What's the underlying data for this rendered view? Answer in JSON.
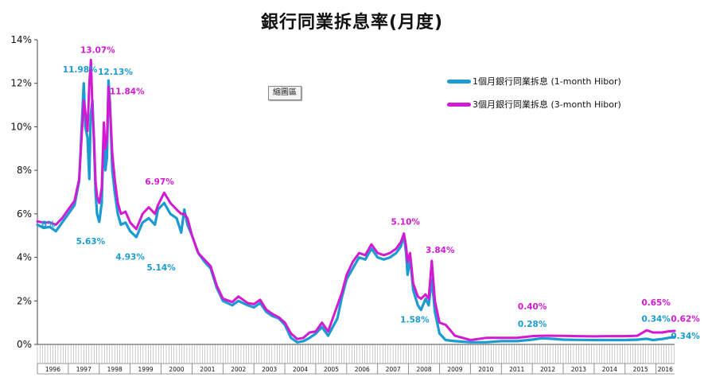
{
  "chart_data": {
    "type": "line",
    "title": "銀行同業拆息率(月度)",
    "xlabel": "",
    "ylabel": "",
    "ylim": [
      0,
      14
    ],
    "y_ticks": [
      "0%",
      "2%",
      "4%",
      "6%",
      "8%",
      "10%",
      "12%",
      "14%"
    ],
    "x_range": [
      1996.0,
      2016.6
    ],
    "year_labels": [
      "1996",
      "1997",
      "1998",
      "1999",
      "2000",
      "2001",
      "2002",
      "2003",
      "2004",
      "2005",
      "2006",
      "2007",
      "2008",
      "2009",
      "2010",
      "2011",
      "2012",
      "2013",
      "2014",
      "2015",
      "2016"
    ],
    "grid": false,
    "legend_position": "top-right",
    "series": [
      {
        "name": "1個月銀行同業拆息 (1-month Hibor)",
        "color": "#1b9bd1",
        "points": [
          [
            1996.0,
            5.5
          ],
          [
            1996.2,
            5.35
          ],
          [
            1996.4,
            5.4
          ],
          [
            1996.6,
            5.2
          ],
          [
            1996.8,
            5.6
          ],
          [
            1997.0,
            6.0
          ],
          [
            1997.2,
            6.4
          ],
          [
            1997.35,
            7.5
          ],
          [
            1997.5,
            12.0
          ],
          [
            1997.55,
            10.0
          ],
          [
            1997.62,
            9.5
          ],
          [
            1997.68,
            7.6
          ],
          [
            1997.72,
            10.5
          ],
          [
            1997.78,
            11.2
          ],
          [
            1997.83,
            9.2
          ],
          [
            1997.88,
            7.0
          ],
          [
            1997.93,
            6.0
          ],
          [
            1998.0,
            5.63
          ],
          [
            1998.08,
            6.5
          ],
          [
            1998.15,
            10.0
          ],
          [
            1998.2,
            8.0
          ],
          [
            1998.25,
            8.6
          ],
          [
            1998.3,
            12.13
          ],
          [
            1998.35,
            11.0
          ],
          [
            1998.42,
            8.0
          ],
          [
            1998.5,
            7.0
          ],
          [
            1998.6,
            6.0
          ],
          [
            1998.7,
            5.5
          ],
          [
            1998.85,
            5.6
          ],
          [
            1999.0,
            5.2
          ],
          [
            1999.2,
            4.93
          ],
          [
            1999.4,
            5.6
          ],
          [
            1999.6,
            5.8
          ],
          [
            1999.8,
            5.5
          ],
          [
            1999.9,
            6.2
          ],
          [
            2000.1,
            6.5
          ],
          [
            2000.3,
            6.0
          ],
          [
            2000.5,
            5.8
          ],
          [
            2000.65,
            5.14
          ],
          [
            2000.75,
            6.2
          ],
          [
            2000.85,
            5.5
          ],
          [
            2001.0,
            5.0
          ],
          [
            2001.2,
            4.2
          ],
          [
            2001.4,
            3.8
          ],
          [
            2001.6,
            3.5
          ],
          [
            2001.8,
            2.6
          ],
          [
            2002.0,
            2.0
          ],
          [
            2002.3,
            1.8
          ],
          [
            2002.5,
            2.0
          ],
          [
            2002.8,
            1.8
          ],
          [
            2003.0,
            1.7
          ],
          [
            2003.2,
            1.9
          ],
          [
            2003.4,
            1.5
          ],
          [
            2003.6,
            1.3
          ],
          [
            2003.8,
            1.2
          ],
          [
            2004.0,
            0.9
          ],
          [
            2004.2,
            0.3
          ],
          [
            2004.4,
            0.1
          ],
          [
            2004.6,
            0.15
          ],
          [
            2004.8,
            0.3
          ],
          [
            2005.0,
            0.5
          ],
          [
            2005.2,
            0.8
          ],
          [
            2005.4,
            0.4
          ],
          [
            2005.55,
            0.8
          ],
          [
            2005.7,
            1.2
          ],
          [
            2005.85,
            2.2
          ],
          [
            2006.0,
            3.0
          ],
          [
            2006.2,
            3.5
          ],
          [
            2006.4,
            4.0
          ],
          [
            2006.6,
            3.9
          ],
          [
            2006.8,
            4.4
          ],
          [
            2007.0,
            4.0
          ],
          [
            2007.2,
            3.9
          ],
          [
            2007.4,
            4.0
          ],
          [
            2007.6,
            4.2
          ],
          [
            2007.75,
            4.5
          ],
          [
            2007.85,
            5.0
          ],
          [
            2007.92,
            4.2
          ],
          [
            2007.97,
            3.2
          ],
          [
            2008.05,
            4.0
          ],
          [
            2008.15,
            2.5
          ],
          [
            2008.3,
            1.8
          ],
          [
            2008.4,
            1.58
          ],
          [
            2008.55,
            2.1
          ],
          [
            2008.65,
            1.8
          ],
          [
            2008.75,
            3.0
          ],
          [
            2008.85,
            1.5
          ],
          [
            2009.0,
            0.5
          ],
          [
            2009.2,
            0.2
          ],
          [
            2009.5,
            0.15
          ],
          [
            2010.0,
            0.1
          ],
          [
            2010.5,
            0.1
          ],
          [
            2011.0,
            0.15
          ],
          [
            2011.5,
            0.15
          ],
          [
            2012.0,
            0.22
          ],
          [
            2012.3,
            0.28
          ],
          [
            2012.6,
            0.26
          ],
          [
            2013.0,
            0.22
          ],
          [
            2013.5,
            0.21
          ],
          [
            2014.0,
            0.2
          ],
          [
            2014.5,
            0.2
          ],
          [
            2015.0,
            0.2
          ],
          [
            2015.4,
            0.22
          ],
          [
            2015.7,
            0.26
          ],
          [
            2015.9,
            0.2
          ],
          [
            2016.2,
            0.25
          ],
          [
            2016.4,
            0.3
          ],
          [
            2016.6,
            0.34
          ]
        ]
      },
      {
        "name": "3個月銀行同業拆息 (3-month Hibor)",
        "color": "#d11ad1",
        "points": [
          [
            1996.0,
            5.65
          ],
          [
            1996.2,
            5.6
          ],
          [
            1996.4,
            5.6
          ],
          [
            1996.6,
            5.5
          ],
          [
            1996.8,
            5.8
          ],
          [
            1997.0,
            6.2
          ],
          [
            1997.2,
            6.6
          ],
          [
            1997.35,
            7.6
          ],
          [
            1997.5,
            11.2
          ],
          [
            1997.57,
            10.5
          ],
          [
            1997.62,
            9.8
          ],
          [
            1997.68,
            12.0
          ],
          [
            1997.73,
            13.07
          ],
          [
            1997.78,
            10.8
          ],
          [
            1997.83,
            9.5
          ],
          [
            1997.88,
            7.5
          ],
          [
            1997.93,
            6.8
          ],
          [
            1998.0,
            6.5
          ],
          [
            1998.08,
            7.2
          ],
          [
            1998.15,
            10.2
          ],
          [
            1998.2,
            9.0
          ],
          [
            1998.25,
            9.5
          ],
          [
            1998.3,
            11.84
          ],
          [
            1998.35,
            10.8
          ],
          [
            1998.42,
            8.8
          ],
          [
            1998.5,
            7.6
          ],
          [
            1998.6,
            6.5
          ],
          [
            1998.7,
            6.0
          ],
          [
            1998.85,
            6.1
          ],
          [
            1999.0,
            5.6
          ],
          [
            1999.2,
            5.3
          ],
          [
            1999.4,
            6.0
          ],
          [
            1999.6,
            6.3
          ],
          [
            1999.8,
            6.0
          ],
          [
            1999.9,
            6.4
          ],
          [
            2000.1,
            6.97
          ],
          [
            2000.3,
            6.5
          ],
          [
            2000.5,
            6.2
          ],
          [
            2000.65,
            6.0
          ],
          [
            2000.75,
            6.0
          ],
          [
            2000.85,
            5.8
          ],
          [
            2001.0,
            5.0
          ],
          [
            2001.2,
            4.2
          ],
          [
            2001.4,
            3.9
          ],
          [
            2001.6,
            3.6
          ],
          [
            2001.8,
            2.7
          ],
          [
            2002.0,
            2.1
          ],
          [
            2002.3,
            1.95
          ],
          [
            2002.5,
            2.2
          ],
          [
            2002.8,
            1.9
          ],
          [
            2003.0,
            1.85
          ],
          [
            2003.2,
            2.05
          ],
          [
            2003.4,
            1.6
          ],
          [
            2003.6,
            1.4
          ],
          [
            2003.8,
            1.25
          ],
          [
            2004.0,
            1.0
          ],
          [
            2004.2,
            0.5
          ],
          [
            2004.4,
            0.25
          ],
          [
            2004.6,
            0.3
          ],
          [
            2004.8,
            0.55
          ],
          [
            2005.0,
            0.6
          ],
          [
            2005.2,
            1.0
          ],
          [
            2005.4,
            0.6
          ],
          [
            2005.55,
            1.2
          ],
          [
            2005.7,
            1.8
          ],
          [
            2005.85,
            2.4
          ],
          [
            2006.0,
            3.2
          ],
          [
            2006.2,
            3.8
          ],
          [
            2006.4,
            4.2
          ],
          [
            2006.6,
            4.1
          ],
          [
            2006.8,
            4.6
          ],
          [
            2007.0,
            4.2
          ],
          [
            2007.2,
            4.1
          ],
          [
            2007.4,
            4.2
          ],
          [
            2007.6,
            4.4
          ],
          [
            2007.75,
            4.7
          ],
          [
            2007.85,
            5.1
          ],
          [
            2007.92,
            4.5
          ],
          [
            2007.97,
            3.8
          ],
          [
            2008.05,
            4.2
          ],
          [
            2008.15,
            2.8
          ],
          [
            2008.3,
            2.2
          ],
          [
            2008.4,
            2.1
          ],
          [
            2008.55,
            2.3
          ],
          [
            2008.65,
            2.1
          ],
          [
            2008.75,
            3.84
          ],
          [
            2008.85,
            2.0
          ],
          [
            2009.0,
            1.0
          ],
          [
            2009.2,
            0.9
          ],
          [
            2009.5,
            0.4
          ],
          [
            2010.0,
            0.2
          ],
          [
            2010.5,
            0.3
          ],
          [
            2011.0,
            0.3
          ],
          [
            2011.5,
            0.3
          ],
          [
            2012.0,
            0.38
          ],
          [
            2012.3,
            0.4
          ],
          [
            2012.6,
            0.4
          ],
          [
            2013.0,
            0.39
          ],
          [
            2013.5,
            0.38
          ],
          [
            2014.0,
            0.37
          ],
          [
            2014.5,
            0.38
          ],
          [
            2015.0,
            0.38
          ],
          [
            2015.4,
            0.4
          ],
          [
            2015.7,
            0.65
          ],
          [
            2015.9,
            0.55
          ],
          [
            2016.2,
            0.55
          ],
          [
            2016.4,
            0.6
          ],
          [
            2016.6,
            0.62
          ]
        ]
      }
    ],
    "annotations": [
      {
        "text": "11.98%",
        "x": 1997.38,
        "y": 12.5,
        "color": "#1b9bd1"
      },
      {
        "text": "13.07%",
        "x": 1997.95,
        "y": 13.4,
        "color": "#d11ad1"
      },
      {
        "text": "12.13%",
        "x": 1998.52,
        "y": 12.4,
        "color": "#1b9bd1"
      },
      {
        "text": "11.84%",
        "x": 1998.9,
        "y": 11.5,
        "color": "#d11ad1"
      },
      {
        "text": "5.63%",
        "x": 1997.72,
        "y": 4.6,
        "color": "#1b9bd1"
      },
      {
        "text": "4.93%",
        "x": 1999.0,
        "y": 3.9,
        "color": "#1b9bd1"
      },
      {
        "text": "5.14%",
        "x": 2000.0,
        "y": 3.4,
        "color": "#1b9bd1"
      },
      {
        "text": "6.97%",
        "x": 1999.95,
        "y": 7.35,
        "color": "#d11ad1"
      },
      {
        "text": "5.10%",
        "x": 2007.9,
        "y": 5.5,
        "color": "#d11ad1"
      },
      {
        "text": "3.84%",
        "x": 2009.02,
        "y": 4.2,
        "color": "#d11ad1"
      },
      {
        "text": "1.58%",
        "x": 2008.2,
        "y": 1.0,
        "color": "#1b9bd1"
      },
      {
        "text": "0.40%",
        "x": 2012.0,
        "y": 1.6,
        "color": "#d11ad1"
      },
      {
        "text": "0.28%",
        "x": 2012.0,
        "y": 0.8,
        "color": "#1b9bd1"
      },
      {
        "text": "0.65%",
        "x": 2016.0,
        "y": 1.8,
        "color": "#d11ad1"
      },
      {
        "text": "0.34%",
        "x": 2016.0,
        "y": 1.05,
        "color": "#1b9bd1"
      },
      {
        "text": "0.62%",
        "x": 2016.95,
        "y": 1.05,
        "color": "#d11ad1"
      },
      {
        "text": "0.34%",
        "x": 2016.95,
        "y": 0.25,
        "color": "#1b9bd1"
      },
      {
        "text": "8%",
        "x": 1996.35,
        "y": 5.4,
        "color": "#1b9bd1"
      }
    ]
  },
  "ui": {
    "zoom_button_label": "縮圖區"
  }
}
